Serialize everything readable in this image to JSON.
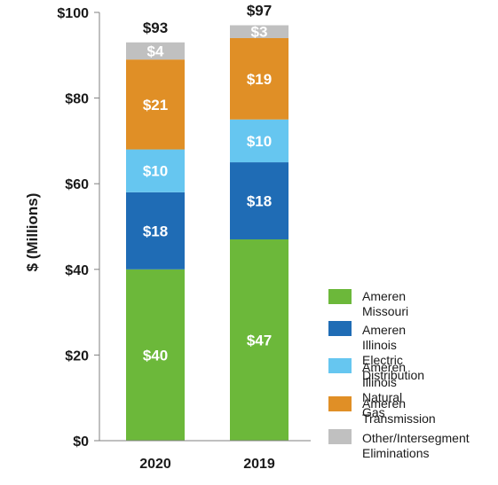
{
  "chart_data": {
    "type": "bar",
    "stacked": true,
    "categories": [
      "2020",
      "2019"
    ],
    "ylabel": "$ (Millions)",
    "ylim": [
      0,
      100
    ],
    "yticks": [
      0,
      20,
      40,
      60,
      80,
      100
    ],
    "ytick_labels": [
      "$0",
      "$20",
      "$40",
      "$60",
      "$80",
      "$100"
    ],
    "totals": [
      93,
      97
    ],
    "total_labels": [
      "$93",
      "$97"
    ],
    "series": [
      {
        "name": "Ameren Missouri",
        "color": "#6cb83a",
        "values": [
          40,
          47
        ],
        "labels": [
          "$40",
          "$47"
        ]
      },
      {
        "name": "Ameren Illinois\nElectric Distribution",
        "color": "#1f6cb5",
        "values": [
          18,
          18
        ],
        "labels": [
          "$18",
          "$18"
        ]
      },
      {
        "name": "Ameren Illinois\nNatural Gas",
        "color": "#66c6f0",
        "values": [
          10,
          10
        ],
        "labels": [
          "$10",
          "$10"
        ]
      },
      {
        "name": "Ameren Transmission",
        "color": "#e08f26",
        "values": [
          21,
          19
        ],
        "labels": [
          "$21",
          "$19"
        ]
      },
      {
        "name": "Other/Intersegment\nEliminations",
        "color": "#c0c0c0",
        "values": [
          4,
          3
        ],
        "labels": [
          "$4",
          "$3"
        ]
      }
    ],
    "legend_position": "right"
  }
}
